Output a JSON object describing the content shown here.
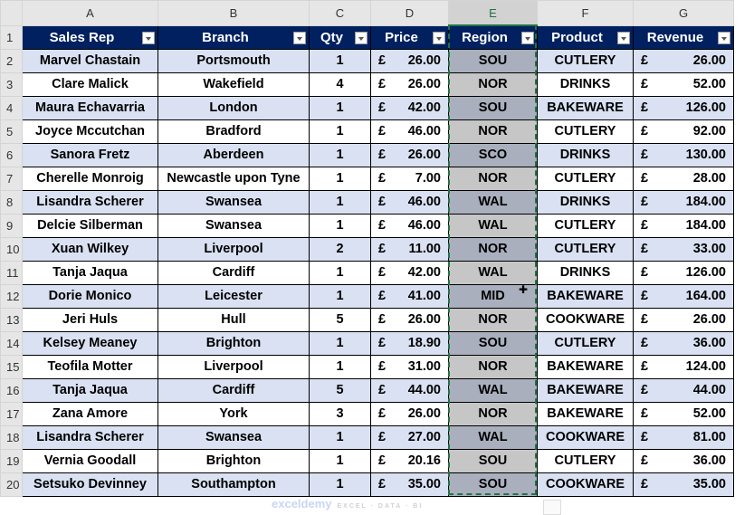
{
  "columns": [
    "A",
    "B",
    "C",
    "D",
    "E",
    "F",
    "G"
  ],
  "selected_column": "E",
  "headers": [
    "Sales Rep",
    "Branch",
    "Qty",
    "Price",
    "Region",
    "Product",
    "Revenue"
  ],
  "currency_symbol": "£",
  "rows": [
    [
      "Marvel Chastain",
      "Portsmouth",
      "1",
      "26.00",
      "SOU",
      "CUTLERY",
      "26.00"
    ],
    [
      "Clare Malick",
      "Wakefield",
      "4",
      "26.00",
      "NOR",
      "DRINKS",
      "52.00"
    ],
    [
      "Maura Echavarria",
      "London",
      "1",
      "42.00",
      "SOU",
      "BAKEWARE",
      "126.00"
    ],
    [
      "Joyce Mccutchan",
      "Bradford",
      "1",
      "46.00",
      "NOR",
      "CUTLERY",
      "92.00"
    ],
    [
      "Sanora Fretz",
      "Aberdeen",
      "1",
      "26.00",
      "SCO",
      "DRINKS",
      "130.00"
    ],
    [
      "Cherelle Monroig",
      "Newcastle upon Tyne",
      "1",
      "7.00",
      "NOR",
      "CUTLERY",
      "28.00"
    ],
    [
      "Lisandra Scherer",
      "Swansea",
      "1",
      "46.00",
      "WAL",
      "DRINKS",
      "184.00"
    ],
    [
      "Delcie Silberman",
      "Swansea",
      "1",
      "46.00",
      "WAL",
      "CUTLERY",
      "184.00"
    ],
    [
      "Xuan Wilkey",
      "Liverpool",
      "2",
      "11.00",
      "NOR",
      "CUTLERY",
      "33.00"
    ],
    [
      "Tanja Jaqua",
      "Cardiff",
      "1",
      "42.00",
      "WAL",
      "DRINKS",
      "126.00"
    ],
    [
      "Dorie Monico",
      "Leicester",
      "1",
      "41.00",
      "MID",
      "BAKEWARE",
      "164.00"
    ],
    [
      "Jeri Huls",
      "Hull",
      "5",
      "26.00",
      "NOR",
      "COOKWARE",
      "26.00"
    ],
    [
      "Kelsey Meaney",
      "Brighton",
      "1",
      "18.90",
      "SOU",
      "CUTLERY",
      "36.00"
    ],
    [
      "Teofila Motter",
      "Liverpool",
      "1",
      "31.00",
      "NOR",
      "BAKEWARE",
      "124.00"
    ],
    [
      "Tanja Jaqua",
      "Cardiff",
      "5",
      "44.00",
      "WAL",
      "BAKEWARE",
      "44.00"
    ],
    [
      "Zana Amore",
      "York",
      "3",
      "26.00",
      "NOR",
      "BAKEWARE",
      "52.00"
    ],
    [
      "Lisandra Scherer",
      "Swansea",
      "1",
      "27.00",
      "WAL",
      "COOKWARE",
      "81.00"
    ],
    [
      "Vernia Goodall",
      "Brighton",
      "1",
      "20.16",
      "SOU",
      "CUTLERY",
      "36.00"
    ],
    [
      "Setsuko Devinney",
      "Southampton",
      "1",
      "35.00",
      "SOU",
      "COOKWARE",
      "35.00"
    ]
  ],
  "watermark": {
    "name": "exceldemy",
    "tagline": "EXCEL · DATA · BI"
  },
  "colors": {
    "header_bg": "#002060",
    "band": "#d9e1f2",
    "selection": "#217346"
  }
}
